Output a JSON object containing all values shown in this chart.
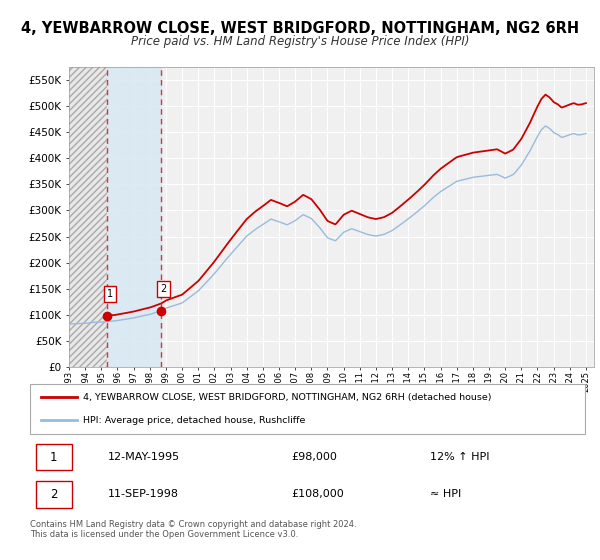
{
  "title": "4, YEWBARROW CLOSE, WEST BRIDGFORD, NOTTINGHAM, NG2 6RH",
  "subtitle": "Price paid vs. HM Land Registry's House Price Index (HPI)",
  "legend_line1": "4, YEWBARROW CLOSE, WEST BRIDGFORD, NOTTINGHAM, NG2 6RH (detached house)",
  "legend_line2": "HPI: Average price, detached house, Rushcliffe",
  "line_color": "#cc0000",
  "hpi_color": "#99bbdd",
  "background_color": "#ffffff",
  "plot_bg_color": "#f0f0f0",
  "grid_color": "#ffffff",
  "ylim": [
    0,
    575000
  ],
  "xlim_start": 1993.0,
  "xlim_end": 2025.5,
  "sale1_x": 1995.36,
  "sale1_y": 98000,
  "sale2_x": 1998.7,
  "sale2_y": 108000,
  "sale1_label": "1",
  "sale2_label": "2",
  "sale1_date": "12-MAY-1995",
  "sale1_price": "£98,000",
  "sale1_hpi": "12% ↑ HPI",
  "sale2_date": "11-SEP-1998",
  "sale2_price": "£108,000",
  "sale2_hpi": "≈ HPI",
  "footer_text": "Contains HM Land Registry data © Crown copyright and database right 2024.\nThis data is licensed under the Open Government Licence v3.0.",
  "yticks": [
    0,
    50000,
    100000,
    150000,
    200000,
    250000,
    300000,
    350000,
    400000,
    450000,
    500000,
    550000
  ],
  "ytick_labels": [
    "£0",
    "£50K",
    "£100K",
    "£150K",
    "£200K",
    "£250K",
    "£300K",
    "£350K",
    "£400K",
    "£450K",
    "£500K",
    "£550K"
  ],
  "hpi_anchors_x": [
    1993.0,
    1994.0,
    1995.0,
    1995.36,
    1996.0,
    1997.0,
    1998.0,
    1998.7,
    1999.0,
    2000.0,
    2001.0,
    2002.0,
    2003.0,
    2004.0,
    2004.5,
    2005.0,
    2005.5,
    2006.0,
    2006.5,
    2007.0,
    2007.5,
    2008.0,
    2008.5,
    2009.0,
    2009.5,
    2010.0,
    2010.5,
    2011.0,
    2011.5,
    2012.0,
    2012.5,
    2013.0,
    2013.5,
    2014.0,
    2014.5,
    2015.0,
    2015.5,
    2016.0,
    2016.5,
    2017.0,
    2017.5,
    2018.0,
    2018.5,
    2019.0,
    2019.5,
    2020.0,
    2020.5,
    2021.0,
    2021.5,
    2022.0,
    2022.25,
    2022.5,
    2022.75,
    2023.0,
    2023.25,
    2023.5,
    2023.75,
    2024.0,
    2024.25,
    2024.5,
    2024.75,
    2025.0
  ],
  "hpi_anchors_y": [
    82000,
    83500,
    86000,
    87000,
    89000,
    93000,
    100000,
    107000,
    112000,
    122000,
    145000,
    178000,
    215000,
    250000,
    262000,
    272000,
    283000,
    278000,
    272000,
    280000,
    292000,
    285000,
    268000,
    248000,
    242000,
    258000,
    265000,
    260000,
    255000,
    252000,
    255000,
    262000,
    273000,
    285000,
    297000,
    310000,
    325000,
    338000,
    348000,
    358000,
    362000,
    366000,
    368000,
    370000,
    372000,
    365000,
    372000,
    390000,
    415000,
    445000,
    458000,
    465000,
    460000,
    452000,
    448000,
    442000,
    445000,
    448000,
    450000,
    447000,
    448000,
    450000
  ]
}
